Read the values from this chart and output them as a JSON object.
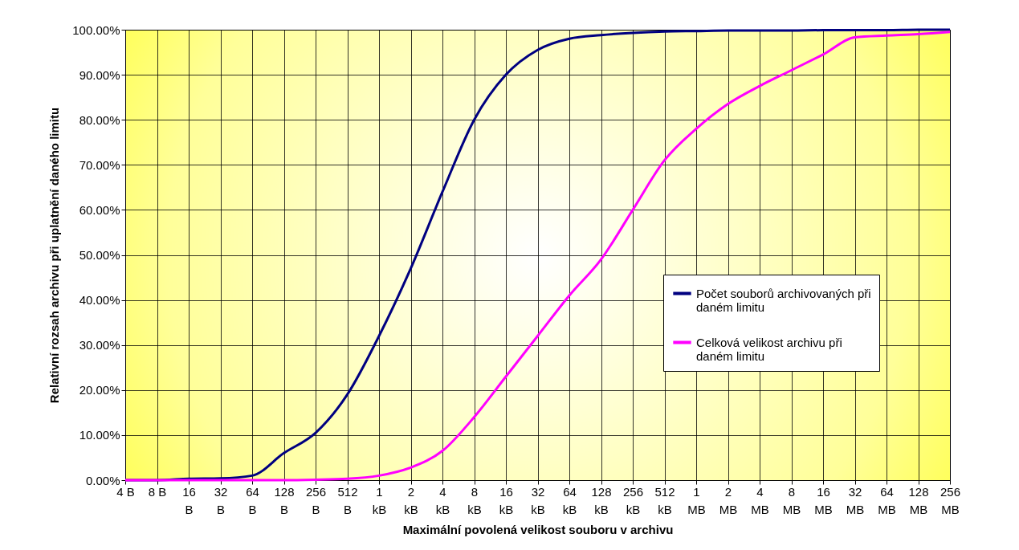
{
  "chart_data": {
    "type": "line",
    "xlabel": "Maximální povolená velikost souboru v archivu",
    "ylabel": "Relativní rozsah archivu při uplatnění daného limitu",
    "categories": [
      "4 B",
      "8 B",
      "16 B",
      "32 B",
      "64 B",
      "128 B",
      "256 B",
      "512 B",
      "1 kB",
      "2 kB",
      "4 kB",
      "8 kB",
      "16 kB",
      "32 kB",
      "64 kB",
      "128 kB",
      "256 kB",
      "512 kB",
      "1 MB",
      "2 MB",
      "4 MB",
      "8 MB",
      "16 MB",
      "32 MB",
      "64 MB",
      "128 MB",
      "256 MB"
    ],
    "series": [
      {
        "name": "Počet souborů archivovaných při daném limitu",
        "color": "#000080",
        "values": [
          0,
          0,
          0.3,
          0.4,
          1,
          6,
          10.5,
          19,
          32,
          47,
          64,
          80,
          90,
          95.5,
          98,
          98.8,
          99.3,
          99.6,
          99.7,
          99.8,
          99.8,
          99.8,
          99.9,
          99.9,
          99.9,
          100,
          100
        ]
      },
      {
        "name": "Celková velikost archivu při daném limitu",
        "color": "#ff00ff",
        "values": [
          0,
          0,
          0,
          0,
          0,
          0,
          0.1,
          0.3,
          1,
          2.8,
          6.5,
          14,
          23,
          32,
          41,
          49,
          60,
          71,
          78,
          83.5,
          87.5,
          91,
          94.5,
          98.3,
          98.7,
          99,
          99.5
        ]
      }
    ],
    "ylim": [
      0,
      100
    ],
    "yticks": [
      {
        "value": 0,
        "label": "0.00%"
      },
      {
        "value": 10,
        "label": "10.00%"
      },
      {
        "value": 20,
        "label": "20.00%"
      },
      {
        "value": 30,
        "label": "30.00%"
      },
      {
        "value": 40,
        "label": "40.00%"
      },
      {
        "value": 50,
        "label": "50.00%"
      },
      {
        "value": 60,
        "label": "60.00%"
      },
      {
        "value": 70,
        "label": "70.00%"
      },
      {
        "value": 80,
        "label": "80.00%"
      },
      {
        "value": 90,
        "label": "90.00%"
      },
      {
        "value": 100,
        "label": "100.00%"
      }
    ],
    "grid": true,
    "legend": "right",
    "marker": "none",
    "line_style": "solid"
  }
}
